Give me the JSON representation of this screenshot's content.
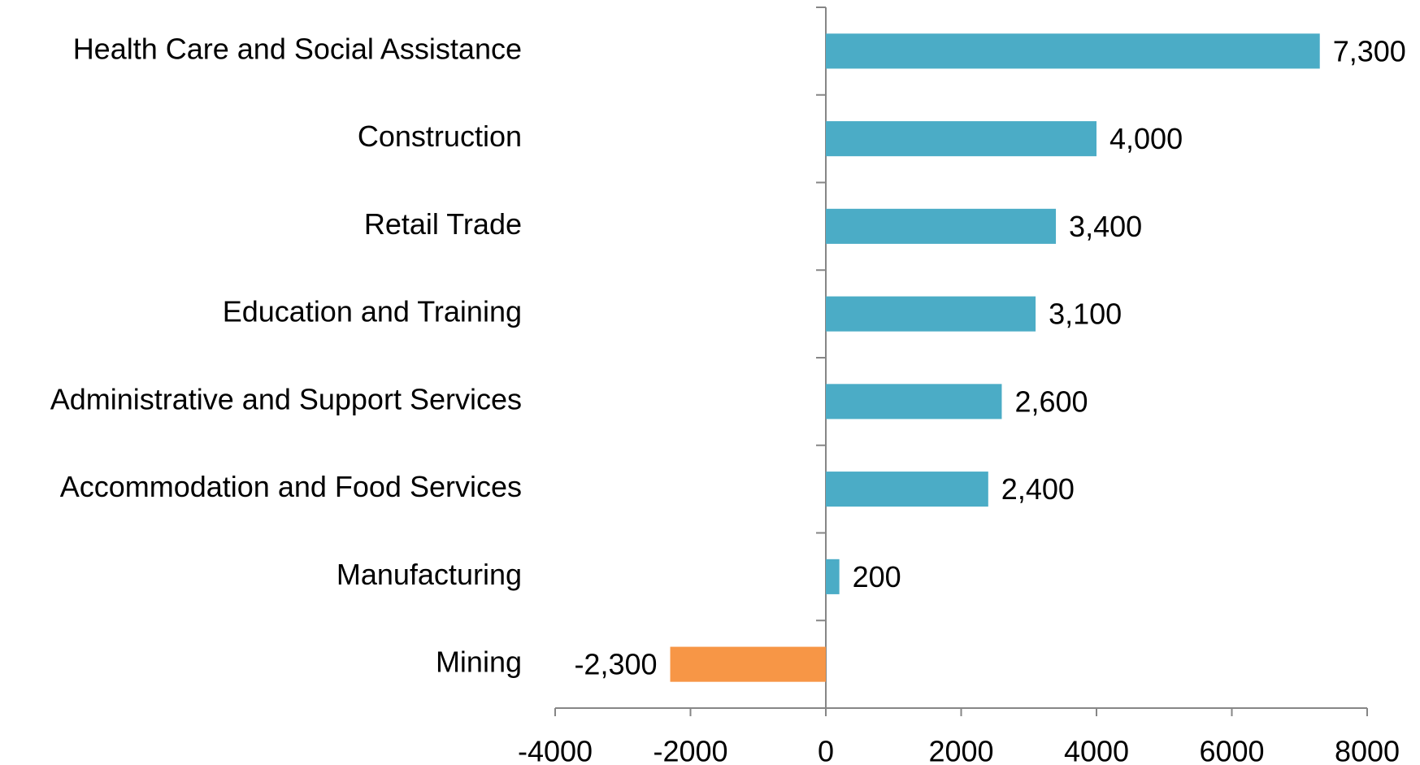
{
  "chart_data": {
    "type": "hbar",
    "categories": [
      "Health Care and Social Assistance",
      "Construction",
      "Retail Trade",
      "Education and Training",
      "Administrative and Support Services",
      "Accommodation and Food Services",
      "Manufacturing",
      "Mining"
    ],
    "values": [
      7300,
      4000,
      3400,
      3100,
      2600,
      2400,
      200,
      -2300
    ],
    "value_labels": [
      "7,300",
      "4,000",
      "3,400",
      "3,100",
      "2,600",
      "2,400",
      "200",
      "-2,300"
    ],
    "colors": [
      "#4bacc6",
      "#4bacc6",
      "#4bacc6",
      "#4bacc6",
      "#4bacc6",
      "#4bacc6",
      "#4bacc6",
      "#f79646"
    ],
    "xlim": [
      -4000,
      8000
    ],
    "xticks": [
      -4000,
      -2000,
      0,
      2000,
      4000,
      6000,
      8000
    ],
    "grid": false
  }
}
